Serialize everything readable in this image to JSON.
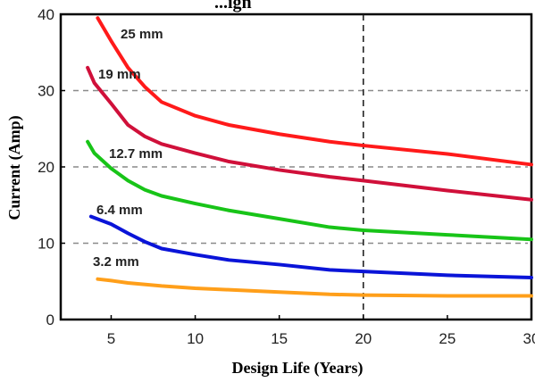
{
  "chart_data": {
    "type": "line",
    "title": "...ign",
    "xlabel": "Design Life (Years)",
    "ylabel": "Current (Amp)",
    "xlim": [
      2,
      30
    ],
    "ylim": [
      0,
      40
    ],
    "x_ticks": [
      5,
      10,
      15,
      20,
      25,
      30
    ],
    "y_ticks": [
      0,
      10,
      20,
      30,
      40
    ],
    "grid": "dashed horizontal lines at 10, 20, 30",
    "annotations": [
      {
        "type": "vline",
        "x": 20,
        "style": "dashed"
      }
    ],
    "series": [
      {
        "name": "25 mm",
        "color": "#ff1a1a",
        "x": [
          4.2,
          5,
          6,
          7,
          8,
          10,
          12,
          15,
          18,
          20,
          25,
          30
        ],
        "y": [
          39.5,
          36.5,
          33,
          30.5,
          28.5,
          26.7,
          25.5,
          24.3,
          23.3,
          22.8,
          21.7,
          20.3
        ]
      },
      {
        "name": "19 mm",
        "color": "#d0103a",
        "x": [
          3.6,
          4,
          5,
          6,
          7,
          8,
          10,
          12,
          15,
          18,
          20,
          25,
          30
        ],
        "y": [
          33,
          31,
          28.3,
          25.5,
          24,
          23,
          21.8,
          20.7,
          19.6,
          18.7,
          18.2,
          16.9,
          15.7
        ]
      },
      {
        "name": "12.7 mm",
        "color": "#18c418",
        "x": [
          3.6,
          4,
          5,
          6,
          7,
          8,
          10,
          12,
          15,
          18,
          20,
          25,
          30
        ],
        "y": [
          23.3,
          21.8,
          19.8,
          18.2,
          17,
          16.2,
          15.2,
          14.3,
          13.2,
          12.1,
          11.7,
          11.1,
          10.5
        ]
      },
      {
        "name": "6.4 mm",
        "color": "#0a14d8",
        "x": [
          3.8,
          5,
          6,
          7,
          8,
          10,
          12,
          15,
          18,
          20,
          25,
          30
        ],
        "y": [
          13.5,
          12.5,
          11.3,
          10.2,
          9.3,
          8.5,
          7.8,
          7.2,
          6.5,
          6.3,
          5.8,
          5.5
        ]
      },
      {
        "name": "3.2 mm",
        "color": "#ff9f1a",
        "x": [
          4.2,
          5,
          6,
          8,
          10,
          12,
          15,
          18,
          20,
          25,
          30
        ],
        "y": [
          5.3,
          5.1,
          4.8,
          4.4,
          4.1,
          3.9,
          3.6,
          3.3,
          3.2,
          3.1,
          3.1
        ]
      }
    ]
  }
}
